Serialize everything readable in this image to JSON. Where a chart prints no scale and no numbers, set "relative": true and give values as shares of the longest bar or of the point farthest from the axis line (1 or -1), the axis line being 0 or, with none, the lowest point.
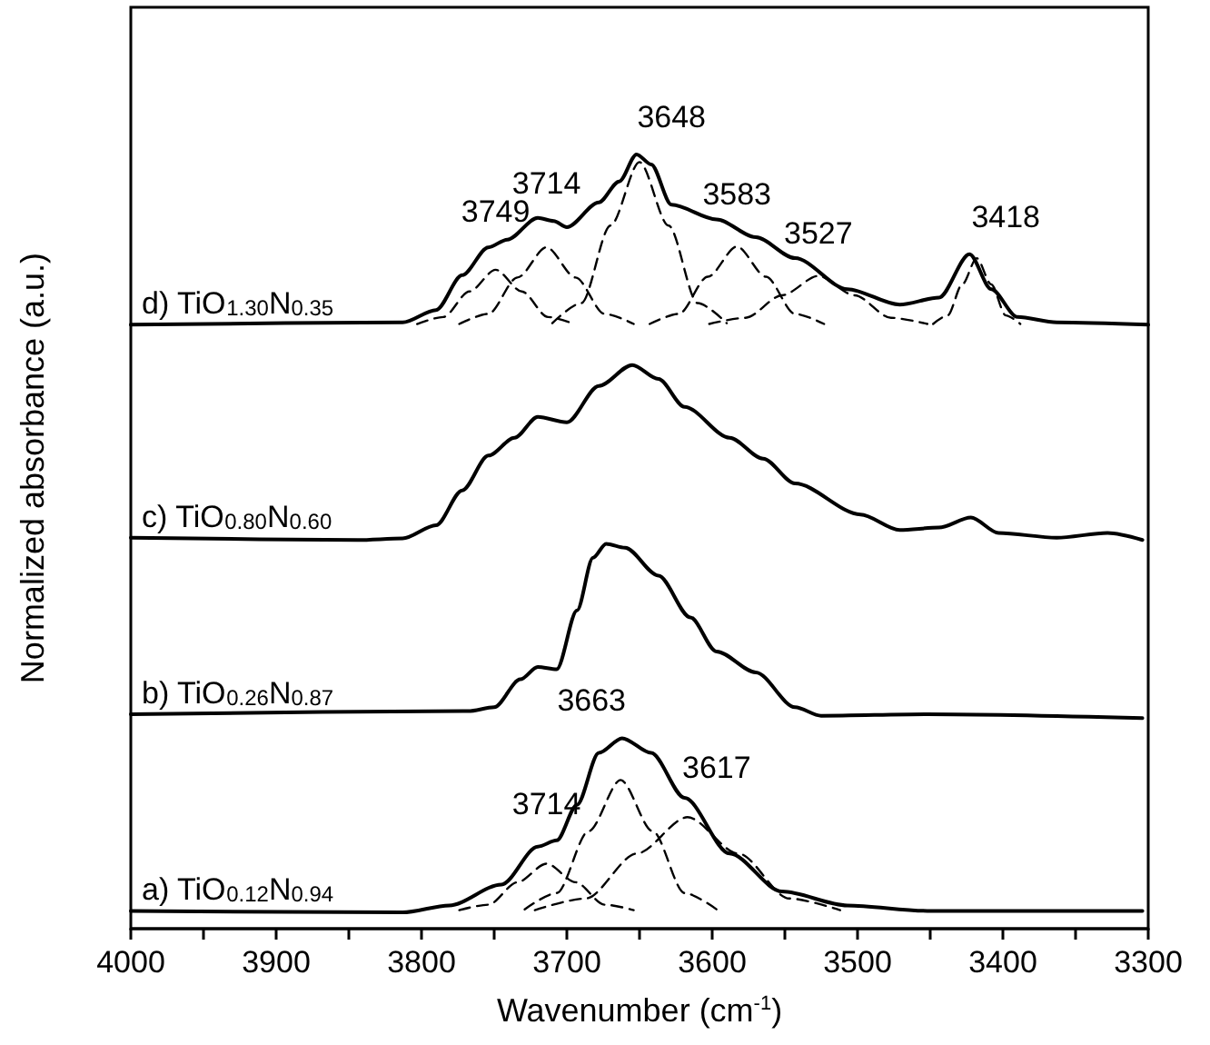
{
  "chart_data": {
    "type": "line",
    "xlabel": "Wavenumber (cm$^{-1}$)",
    "ylabel": "Normalized absorbance (a.u.)",
    "relative": true,
    "marker": "none",
    "xlim": [
      4000,
      3300
    ],
    "xticks": [
      4000,
      {
        "value": 3950,
        "label": null
      },
      3900,
      {
        "value": 3850,
        "label": null
      },
      3800,
      {
        "value": 3750,
        "label": null
      },
      3700,
      {
        "value": 3650,
        "label": null
      },
      3600,
      {
        "value": 3550,
        "label": null
      },
      3500,
      {
        "value": 3450,
        "label": null
      },
      3400,
      {
        "value": 3350,
        "label": null
      },
      3300
    ],
    "annotations": [
      {
        "text": "3749",
        "x": 3749,
        "y": 0.878
      },
      {
        "text": "3714",
        "x": 3714,
        "y": 0.914
      },
      {
        "text": "3648",
        "x": 3648,
        "y": 1.0
      },
      {
        "text": "3583",
        "x": 3583,
        "y": 0.9
      },
      {
        "text": "3527",
        "x": 3527,
        "y": 0.85
      },
      {
        "text": "3418",
        "x": 3418,
        "y": 0.871
      },
      {
        "text": "3714",
        "x": 3714,
        "y": 0.113
      },
      {
        "text": "3663",
        "x": 3663,
        "y": 0.246
      },
      {
        "text": "3617",
        "x": 3617,
        "y": 0.16
      }
    ],
    "series": [
      {
        "name": "d) TiO$_{1.30}$N$_{0.35}$",
        "color": "#000000",
        "line_style": "solid",
        "x": [
          4000,
          3813,
          3790,
          3772,
          3754,
          3741,
          3720,
          3709,
          3700,
          3678,
          3664,
          3652,
          3642,
          3628,
          3597,
          3570,
          3543,
          3507,
          3471,
          3444,
          3423,
          3408,
          3390,
          3363,
          3300
        ],
        "values": [
          0.78,
          0.783,
          0.799,
          0.844,
          0.88,
          0.89,
          0.918,
          0.914,
          0.906,
          0.938,
          0.965,
          1.0,
          0.987,
          0.935,
          0.916,
          0.893,
          0.866,
          0.826,
          0.806,
          0.815,
          0.871,
          0.826,
          0.79,
          0.783,
          0.78
        ]
      },
      {
        "color": "#000000",
        "line_style": "dashed",
        "x": [
          3803,
          3785,
          3767,
          3749,
          3731,
          3713,
          3695
        ],
        "values": [
          0.781,
          0.79,
          0.823,
          0.851,
          0.823,
          0.79,
          0.781
        ]
      },
      {
        "color": "#000000",
        "line_style": "dashed",
        "x": [
          3774,
          3754,
          3734,
          3714,
          3694,
          3674,
          3654
        ],
        "values": [
          0.781,
          0.794,
          0.841,
          0.88,
          0.841,
          0.794,
          0.781
        ]
      },
      {
        "color": "#000000",
        "line_style": "dashed",
        "x": [
          3710,
          3690,
          3670,
          3650,
          3630,
          3610,
          3590
        ],
        "values": [
          0.782,
          0.808,
          0.908,
          0.99,
          0.908,
          0.808,
          0.782
        ]
      },
      {
        "color": "#000000",
        "line_style": "dashed",
        "x": [
          3643,
          3623,
          3603,
          3583,
          3563,
          3543,
          3523
        ],
        "values": [
          0.781,
          0.794,
          0.842,
          0.881,
          0.842,
          0.794,
          0.781
        ]
      },
      {
        "color": "#000000",
        "line_style": "dashed",
        "x": [
          3602,
          3577,
          3552,
          3527,
          3502,
          3477,
          3452
        ],
        "values": [
          0.781,
          0.789,
          0.818,
          0.843,
          0.818,
          0.789,
          0.781
        ]
      },
      {
        "color": "#000000",
        "line_style": "dashed",
        "x": [
          3448,
          3438,
          3428,
          3418,
          3408,
          3398,
          3388
        ],
        "values": [
          0.781,
          0.792,
          0.832,
          0.866,
          0.832,
          0.792,
          0.781
        ]
      },
      {
        "name": "c) TiO$_{0.80}$N$_{0.60}$",
        "color": "#000000",
        "line_style": "solid",
        "x": [
          4000,
          3844,
          3813,
          3790,
          3772,
          3754,
          3736,
          3720,
          3700,
          3678,
          3655,
          3637,
          3619,
          3588,
          3565,
          3543,
          3498,
          3471,
          3444,
          3422,
          3403,
          3363,
          3328,
          3304
        ],
        "values": [
          0.505,
          0.502,
          0.504,
          0.521,
          0.566,
          0.611,
          0.634,
          0.661,
          0.654,
          0.701,
          0.728,
          0.71,
          0.674,
          0.634,
          0.607,
          0.575,
          0.535,
          0.515,
          0.518,
          0.531,
          0.511,
          0.505,
          0.511,
          0.502
        ]
      },
      {
        "name": "b) TiO$_{0.26}$N$_{0.87}$",
        "color": "#000000",
        "line_style": "solid",
        "x": [
          4000,
          3768,
          3750,
          3732,
          3720,
          3707,
          3693,
          3682,
          3673,
          3660,
          3637,
          3615,
          3597,
          3570,
          3543,
          3525,
          3452,
          3304
        ],
        "values": [
          0.277,
          0.281,
          0.286,
          0.322,
          0.338,
          0.335,
          0.411,
          0.479,
          0.497,
          0.492,
          0.456,
          0.402,
          0.358,
          0.331,
          0.286,
          0.275,
          0.277,
          0.272
        ]
      },
      {
        "name": "a) TiO$_{0.12}$N$_{0.94}$",
        "color": "#000000",
        "line_style": "solid",
        "x": [
          4000,
          3813,
          3781,
          3745,
          3720,
          3707,
          3693,
          3678,
          3662,
          3642,
          3619,
          3588,
          3552,
          3507,
          3452,
          3304
        ],
        "values": [
          0.023,
          0.021,
          0.03,
          0.057,
          0.106,
          0.114,
          0.16,
          0.227,
          0.246,
          0.227,
          0.169,
          0.097,
          0.048,
          0.03,
          0.023,
          0.023
        ]
      },
      {
        "color": "#000000",
        "line_style": "dashed",
        "x": [
          3774,
          3754,
          3734,
          3714,
          3694,
          3674,
          3654
        ],
        "values": [
          0.024,
          0.031,
          0.06,
          0.084,
          0.06,
          0.031,
          0.024
        ]
      },
      {
        "color": "#000000",
        "line_style": "dashed",
        "x": [
          3729,
          3707,
          3685,
          3663,
          3641,
          3619,
          3597
        ],
        "values": [
          0.025,
          0.046,
          0.126,
          0.192,
          0.126,
          0.046,
          0.025
        ]
      },
      {
        "color": "#000000",
        "line_style": "dashed",
        "x": [
          3722,
          3687,
          3652,
          3617,
          3582,
          3547,
          3512
        ],
        "values": [
          0.024,
          0.039,
          0.097,
          0.144,
          0.097,
          0.039,
          0.024
        ]
      }
    ]
  }
}
